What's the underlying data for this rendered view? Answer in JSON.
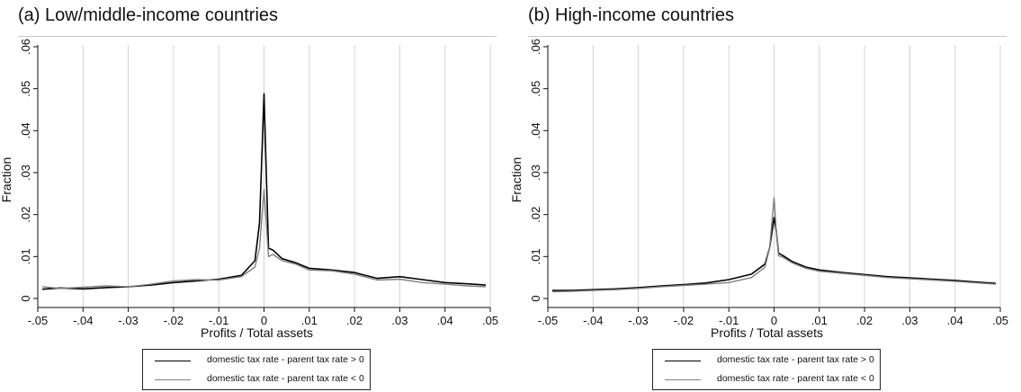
{
  "chart_data": [
    {
      "type": "line",
      "title": "(a) Low/middle-income countries",
      "xlabel": "Profits / Total assets",
      "ylabel": "Fraction",
      "xlim": [
        -0.05,
        0.05
      ],
      "ylim": [
        0,
        0.06
      ],
      "x_ticks": [
        -0.05,
        -0.04,
        -0.03,
        -0.02,
        -0.01,
        0,
        0.01,
        0.02,
        0.03,
        0.04,
        0.05
      ],
      "x_tick_labels": [
        "-.05",
        "-.04",
        "-.03",
        "-.02",
        "-.01",
        "0",
        ".01",
        ".02",
        ".03",
        ".04",
        ".05"
      ],
      "y_ticks": [
        0,
        0.01,
        0.02,
        0.03,
        0.04,
        0.05,
        0.06
      ],
      "y_tick_labels": [
        "0",
        ".01",
        ".02",
        ".03",
        ".04",
        ".05",
        ".06"
      ],
      "grid": "vertical",
      "legend_position": "bottom",
      "series": [
        {
          "name": "domestic tax rate - parent tax rate > 0",
          "color": "#000000",
          "x": [
            -0.049,
            -0.045,
            -0.04,
            -0.035,
            -0.03,
            -0.025,
            -0.02,
            -0.015,
            -0.01,
            -0.005,
            -0.002,
            -0.001,
            0,
            0.0005,
            0.001,
            0.002,
            0.004,
            0.007,
            0.01,
            0.015,
            0.02,
            0.025,
            0.03,
            0.035,
            0.04,
            0.045,
            0.049
          ],
          "y": [
            0.0022,
            0.0025,
            0.0023,
            0.0026,
            0.0028,
            0.0032,
            0.0038,
            0.0042,
            0.0046,
            0.0055,
            0.009,
            0.018,
            0.0488,
            0.03,
            0.012,
            0.0115,
            0.0095,
            0.0085,
            0.0072,
            0.0068,
            0.0062,
            0.0048,
            0.0052,
            0.0045,
            0.0038,
            0.0035,
            0.0032
          ]
        },
        {
          "name": "domestic tax rate - parent tax rate < 0",
          "color": "#808080",
          "x": [
            -0.049,
            -0.045,
            -0.04,
            -0.035,
            -0.03,
            -0.025,
            -0.02,
            -0.015,
            -0.01,
            -0.005,
            -0.002,
            -0.001,
            0,
            0.0005,
            0.001,
            0.002,
            0.004,
            0.007,
            0.01,
            0.015,
            0.02,
            0.025,
            0.03,
            0.035,
            0.04,
            0.045,
            0.049
          ],
          "y": [
            0.0028,
            0.0024,
            0.0027,
            0.003,
            0.0028,
            0.0034,
            0.0042,
            0.0045,
            0.0044,
            0.0052,
            0.0075,
            0.012,
            0.026,
            0.018,
            0.01,
            0.0105,
            0.009,
            0.0082,
            0.0068,
            0.0066,
            0.0058,
            0.0044,
            0.0046,
            0.0038,
            0.0034,
            0.003,
            0.0028
          ]
        }
      ]
    },
    {
      "type": "line",
      "title": "(b) High-income countries",
      "xlabel": "Profits / Total assets",
      "ylabel": "Fraction",
      "xlim": [
        -0.05,
        0.05
      ],
      "ylim": [
        0,
        0.06
      ],
      "x_ticks": [
        -0.05,
        -0.04,
        -0.03,
        -0.02,
        -0.01,
        0,
        0.01,
        0.02,
        0.03,
        0.04,
        0.05
      ],
      "x_tick_labels": [
        "-.05",
        "-.04",
        "-.03",
        "-.02",
        "-.01",
        "0",
        ".01",
        ".02",
        ".03",
        ".04",
        ".05"
      ],
      "y_ticks": [
        0,
        0.01,
        0.02,
        0.03,
        0.04,
        0.05,
        0.06
      ],
      "y_tick_labels": [
        "0",
        ".01",
        ".02",
        ".03",
        ".04",
        ".05",
        ".06"
      ],
      "grid": "vertical",
      "legend_position": "bottom",
      "series": [
        {
          "name": "domestic tax rate - parent tax rate > 0",
          "color": "#000000",
          "x": [
            -0.049,
            -0.045,
            -0.04,
            -0.035,
            -0.03,
            -0.025,
            -0.02,
            -0.015,
            -0.01,
            -0.005,
            -0.002,
            -0.001,
            0,
            0.0005,
            0.001,
            0.002,
            0.004,
            0.007,
            0.01,
            0.015,
            0.02,
            0.025,
            0.03,
            0.035,
            0.04,
            0.045,
            0.049
          ],
          "y": [
            0.0019,
            0.0019,
            0.0021,
            0.0023,
            0.0026,
            0.003,
            0.0033,
            0.0037,
            0.0045,
            0.0058,
            0.0082,
            0.012,
            0.0193,
            0.016,
            0.0108,
            0.0102,
            0.0088,
            0.0075,
            0.0068,
            0.0062,
            0.0057,
            0.0052,
            0.0049,
            0.0046,
            0.0043,
            0.0039,
            0.0036
          ]
        },
        {
          "name": "domestic tax rate - parent tax rate < 0",
          "color": "#808080",
          "x": [
            -0.049,
            -0.045,
            -0.04,
            -0.035,
            -0.03,
            -0.025,
            -0.02,
            -0.015,
            -0.01,
            -0.005,
            -0.002,
            -0.001,
            0,
            0.0005,
            0.001,
            0.002,
            0.004,
            0.007,
            0.01,
            0.015,
            0.02,
            0.025,
            0.03,
            0.035,
            0.04,
            0.045,
            0.049
          ],
          "y": [
            0.0016,
            0.0017,
            0.0019,
            0.0021,
            0.0024,
            0.0028,
            0.0031,
            0.0034,
            0.0038,
            0.005,
            0.0075,
            0.012,
            0.024,
            0.016,
            0.0102,
            0.0098,
            0.0085,
            0.0072,
            0.0065,
            0.006,
            0.0055,
            0.005,
            0.0047,
            0.0044,
            0.0041,
            0.0037,
            0.0034
          ]
        }
      ]
    }
  ]
}
